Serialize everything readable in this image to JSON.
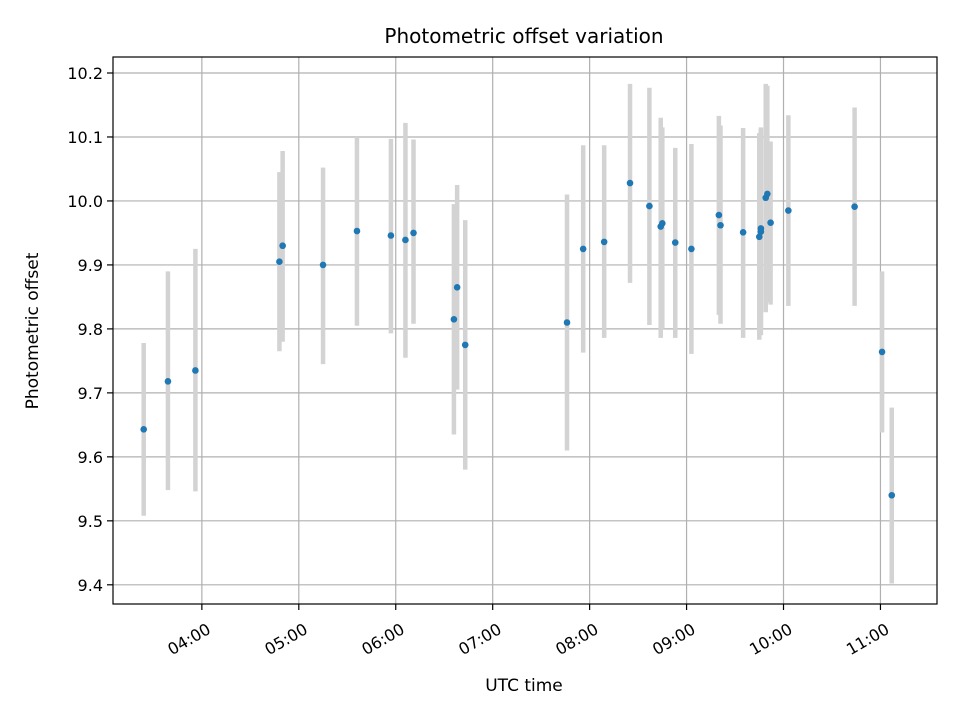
{
  "chart_data": {
    "type": "scatter",
    "title": "Photometric offset variation",
    "xlabel": "UTC time",
    "ylabel": "Photometric offset",
    "grid": true,
    "xlim": [
      "03:05",
      "11:35"
    ],
    "ylim": [
      9.37,
      10.225
    ],
    "x_ticks": [
      "04:00",
      "05:00",
      "06:00",
      "07:00",
      "08:00",
      "09:00",
      "10:00",
      "11:00"
    ],
    "y_ticks": [
      "9.4",
      "9.5",
      "9.6",
      "9.7",
      "9.8",
      "9.9",
      "10.0",
      "10.1",
      "10.2"
    ],
    "colors": {
      "point": "#1f77b4",
      "errorbar": "#d3d3d3",
      "grid": "#b0b0b0",
      "axes": "#000000"
    },
    "points": [
      {
        "x": "03:24",
        "y": 9.643,
        "ylow": 9.508,
        "yhigh": 9.778
      },
      {
        "x": "03:39",
        "y": 9.718,
        "ylow": 9.548,
        "yhigh": 9.89
      },
      {
        "x": "03:56",
        "y": 9.735,
        "ylow": 9.546,
        "yhigh": 9.925
      },
      {
        "x": "04:48",
        "y": 9.905,
        "ylow": 9.765,
        "yhigh": 10.045
      },
      {
        "x": "04:50",
        "y": 9.93,
        "ylow": 9.78,
        "yhigh": 10.078
      },
      {
        "x": "05:15",
        "y": 9.9,
        "ylow": 9.745,
        "yhigh": 10.052
      },
      {
        "x": "05:36",
        "y": 9.953,
        "ylow": 9.805,
        "yhigh": 10.1
      },
      {
        "x": "05:57",
        "y": 9.946,
        "ylow": 9.793,
        "yhigh": 10.097
      },
      {
        "x": "06:06",
        "y": 9.939,
        "ylow": 9.755,
        "yhigh": 10.122
      },
      {
        "x": "06:11",
        "y": 9.95,
        "ylow": 9.808,
        "yhigh": 10.096
      },
      {
        "x": "06:36",
        "y": 9.815,
        "ylow": 9.635,
        "yhigh": 9.995
      },
      {
        "x": "06:38",
        "y": 9.865,
        "ylow": 9.705,
        "yhigh": 10.025
      },
      {
        "x": "06:43",
        "y": 9.775,
        "ylow": 9.58,
        "yhigh": 9.97
      },
      {
        "x": "07:46",
        "y": 9.81,
        "ylow": 9.61,
        "yhigh": 10.01
      },
      {
        "x": "07:56",
        "y": 9.925,
        "ylow": 9.763,
        "yhigh": 10.087
      },
      {
        "x": "08:09",
        "y": 9.936,
        "ylow": 9.786,
        "yhigh": 10.087
      },
      {
        "x": "08:25",
        "y": 10.028,
        "ylow": 9.872,
        "yhigh": 10.183
      },
      {
        "x": "08:37",
        "y": 9.992,
        "ylow": 9.806,
        "yhigh": 10.177
      },
      {
        "x": "08:44",
        "y": 9.96,
        "ylow": 9.786,
        "yhigh": 10.13
      },
      {
        "x": "08:45",
        "y": 9.965,
        "ylow": 9.8,
        "yhigh": 10.115
      },
      {
        "x": "08:53",
        "y": 9.935,
        "ylow": 9.786,
        "yhigh": 10.083
      },
      {
        "x": "09:03",
        "y": 9.925,
        "ylow": 9.761,
        "yhigh": 10.089
      },
      {
        "x": "09:20",
        "y": 9.978,
        "ylow": 9.822,
        "yhigh": 10.133
      },
      {
        "x": "09:21",
        "y": 9.962,
        "ylow": 9.808,
        "yhigh": 10.118
      },
      {
        "x": "09:35",
        "y": 9.951,
        "ylow": 9.786,
        "yhigh": 10.114
      },
      {
        "x": "09:45",
        "y": 9.944,
        "ylow": 9.783,
        "yhigh": 10.106
      },
      {
        "x": "09:46",
        "y": 9.952,
        "ylow": 9.79,
        "yhigh": 10.115
      },
      {
        "x": "09:46",
        "y": 9.957,
        "ylow": 9.8,
        "yhigh": 10.112
      },
      {
        "x": "09:49",
        "y": 10.005,
        "ylow": 9.826,
        "yhigh": 10.183
      },
      {
        "x": "09:50",
        "y": 10.011,
        "ylow": 9.842,
        "yhigh": 10.18
      },
      {
        "x": "09:52",
        "y": 9.966,
        "ylow": 9.838,
        "yhigh": 10.093
      },
      {
        "x": "10:03",
        "y": 9.985,
        "ylow": 9.836,
        "yhigh": 10.134
      },
      {
        "x": "10:44",
        "y": 9.991,
        "ylow": 9.836,
        "yhigh": 10.146
      },
      {
        "x": "11:01",
        "y": 9.764,
        "ylow": 9.638,
        "yhigh": 9.89
      },
      {
        "x": "11:07",
        "y": 9.54,
        "ylow": 9.402,
        "yhigh": 9.677
      }
    ]
  }
}
